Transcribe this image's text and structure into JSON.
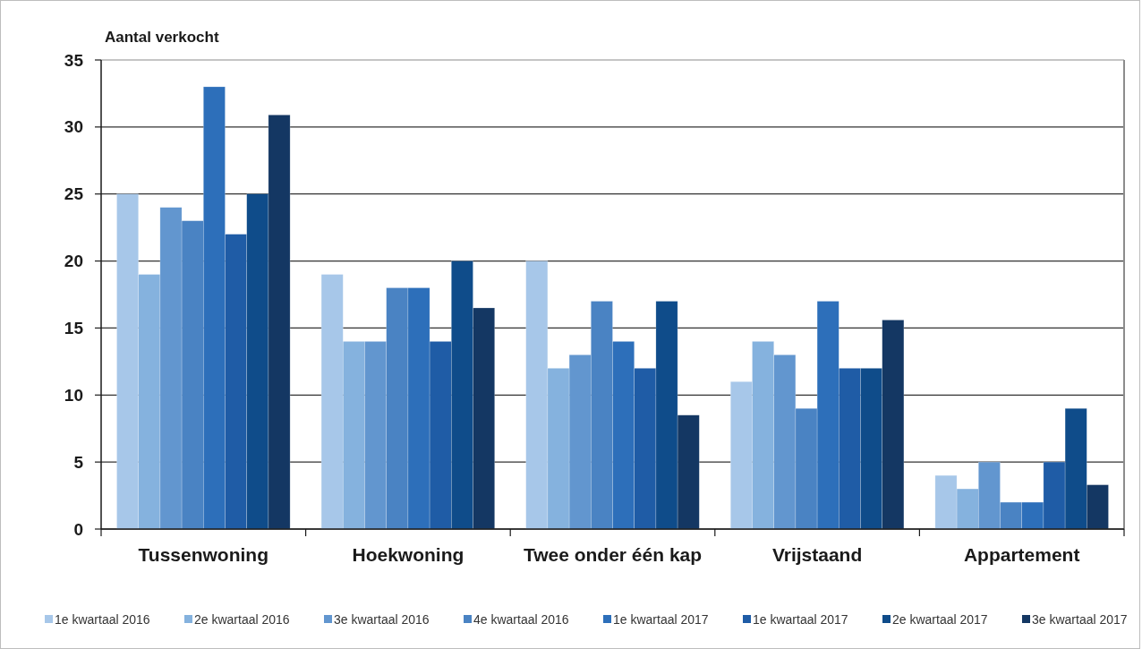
{
  "chart_data": {
    "type": "bar",
    "ylabel": "Aantal verkocht",
    "categories": [
      "Tussenwoning",
      "Hoekwoning",
      "Twee onder één kap",
      "Vrijstaand",
      "Appartement"
    ],
    "series": [
      {
        "name": "1e kwartaal 2016",
        "color": "#a7c7e9",
        "values": [
          25,
          19,
          20,
          11,
          4
        ]
      },
      {
        "name": "2e kwartaal 2016",
        "color": "#85b2de",
        "values": [
          19,
          14,
          12,
          14,
          3
        ]
      },
      {
        "name": "3e kwartaal 2016",
        "color": "#6296cf",
        "values": [
          24,
          14,
          13,
          13,
          5
        ]
      },
      {
        "name": "4e kwartaal 2016",
        "color": "#4a83c3",
        "values": [
          23,
          18,
          17,
          9,
          2
        ]
      },
      {
        "name": "1e kwartaal 2017",
        "color": "#2d6fba",
        "values": [
          33,
          18,
          14,
          17,
          2
        ]
      },
      {
        "name": "1e kwartaal 2017",
        "color": "#1f5ca6",
        "values": [
          22,
          14,
          12,
          12,
          5
        ]
      },
      {
        "name": "2e kwartaal 2017",
        "color": "#0f4c8a",
        "values": [
          25,
          20,
          17,
          12,
          9
        ]
      },
      {
        "name": "3e kwartaal 2017",
        "color": "#143763",
        "values": [
          30.9,
          16.5,
          8.5,
          15.6,
          3.3
        ]
      }
    ],
    "ylim": [
      0,
      35
    ],
    "yticks": [
      0,
      5,
      10,
      15,
      20,
      25,
      30,
      35
    ],
    "grid": "y",
    "legend": "bottom"
  }
}
